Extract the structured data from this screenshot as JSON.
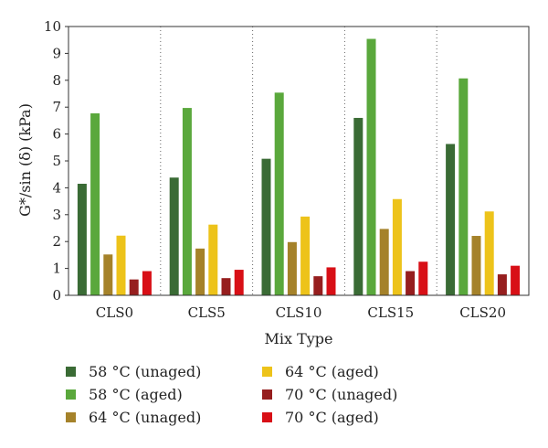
{
  "chart_data": {
    "type": "bar",
    "title": "",
    "xlabel": "Mix Type",
    "ylabel": "G*/sin (δ) (kPa)",
    "ylim": [
      0,
      10
    ],
    "yticks": [
      0,
      1,
      2,
      3,
      4,
      5,
      6,
      7,
      8,
      9,
      10
    ],
    "grid": "vertical dotted separators",
    "legend_position": "bottom",
    "categories": [
      "CLS0",
      "CLS5",
      "CLS10",
      "CLS15",
      "CLS20"
    ],
    "series": [
      {
        "name": "58 °C (unaged)",
        "color": "#3a6b35",
        "values": [
          4.15,
          4.38,
          5.08,
          6.6,
          5.63
        ]
      },
      {
        "name": "58 °C (aged)",
        "color": "#5aa83c",
        "values": [
          6.77,
          6.97,
          7.54,
          9.54,
          8.07
        ]
      },
      {
        "name": "64 °C (unaged)",
        "color": "#a5822a",
        "values": [
          1.52,
          1.74,
          1.98,
          2.47,
          2.21
        ]
      },
      {
        "name": "64 °C (aged)",
        "color": "#edc31a",
        "values": [
          2.22,
          2.63,
          2.93,
          3.58,
          3.12
        ]
      },
      {
        "name": "70 °C (unaged)",
        "color": "#961e1e",
        "values": [
          0.59,
          0.64,
          0.71,
          0.9,
          0.78
        ]
      },
      {
        "name": "70 °C (aged)",
        "color": "#d80f16",
        "values": [
          0.9,
          0.95,
          1.04,
          1.25,
          1.1
        ]
      }
    ]
  }
}
